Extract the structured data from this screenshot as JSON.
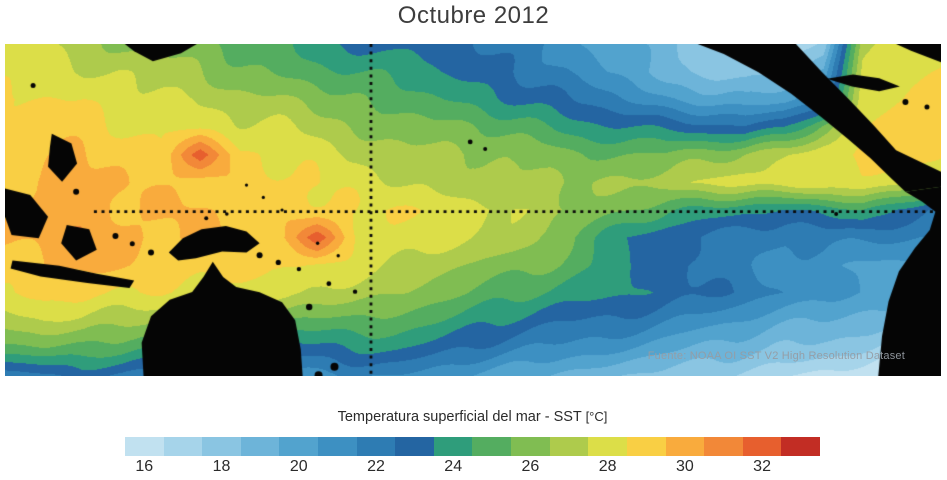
{
  "title": "Octubre 2012",
  "map": {
    "source_note": "Fuente: NOAA OI SST V2 High Resolution Dataset"
  },
  "colorbar": {
    "label": "Temperatura superficial del mar - SST",
    "unit": "[°C]",
    "bin_start": 15.5,
    "bin_size": 1,
    "ticks": [
      16,
      18,
      20,
      22,
      24,
      26,
      28,
      30,
      32
    ],
    "colors": [
      "#c1e1f0",
      "#a6d4ea",
      "#8ac5e2",
      "#6db4d9",
      "#52a3ce",
      "#3d90c2",
      "#2e7cb3",
      "#2465a2",
      "#2f9d7b",
      "#54ad60",
      "#80bd52",
      "#aecb4c",
      "#dcde48",
      "#f9cf44",
      "#f9ab3d",
      "#f28838",
      "#e75f2e",
      "#c22d24"
    ]
  },
  "chart_data": {
    "type": "heatmap",
    "title": "Octubre 2012",
    "variable": "Temperatura superficial del mar - SST (°C)",
    "units": "°C",
    "grid_shape": [
      13,
      25
    ],
    "sst_grid": [
      [
        27.5,
        27.5,
        27,
        26.5,
        26,
        25.5,
        25,
        24.5,
        24,
        23.5,
        23,
        23,
        22.5,
        22,
        21.5,
        20.5,
        19.5,
        18.5,
        18,
        17.5,
        17.5,
        18,
        27,
        28,
        28
      ],
      [
        28,
        28,
        27.5,
        27.5,
        27,
        26.5,
        26,
        25.5,
        25,
        24.5,
        24,
        23.5,
        23,
        22.5,
        22,
        21,
        20,
        19,
        18.5,
        18,
        18.5,
        19.5,
        27.5,
        28.5,
        28.5
      ],
      [
        28.5,
        28.5,
        28.5,
        28,
        28,
        27.5,
        27,
        26.5,
        26,
        25.5,
        25,
        24.5,
        24,
        23.5,
        23,
        22.5,
        21.5,
        20.5,
        20,
        19.5,
        20,
        21.5,
        28,
        28.5,
        29
      ],
      [
        28.5,
        29,
        29,
        28.6,
        28.5,
        28,
        27.6,
        27.5,
        27,
        26.6,
        26,
        25.6,
        25.5,
        25,
        24.6,
        24,
        23.6,
        23,
        22.6,
        22.5,
        23.5,
        26,
        28.5,
        29,
        29
      ],
      [
        29,
        29.2,
        29.4,
        29.2,
        29,
        31.8,
        28.6,
        28.2,
        28,
        27.6,
        27,
        26.6,
        26.5,
        26,
        26,
        25.6,
        25.5,
        25.5,
        26,
        26.5,
        27.5,
        28.5,
        29,
        28.8,
        28.5
      ],
      [
        29.2,
        29.6,
        29.8,
        29.6,
        29.3,
        29.2,
        28.8,
        28.6,
        28.5,
        28.2,
        27.6,
        27.2,
        27,
        26.6,
        26.5,
        26.5,
        26.6,
        27,
        27.5,
        28,
        28.1,
        28.5,
        28.5,
        28,
        27.5
      ],
      [
        29.3,
        29.7,
        30.1,
        29.8,
        29.6,
        29.4,
        29.2,
        28.8,
        28.7,
        28.6,
        28.5,
        28.2,
        28,
        27.6,
        27,
        26.5,
        25.5,
        24.5,
        24,
        23.6,
        23.5,
        24,
        24.5,
        23,
        22.5
      ],
      [
        29.6,
        29.8,
        30.1,
        29.8,
        29.7,
        29.6,
        29.3,
        29,
        31.8,
        28.7,
        28.5,
        28,
        27.5,
        27,
        26,
        25,
        23.6,
        22.6,
        22,
        21.6,
        21.5,
        22,
        22,
        21.5,
        21
      ],
      [
        29.2,
        29.6,
        29.7,
        29.6,
        29.3,
        29.1,
        28.8,
        28.6,
        28.2,
        28,
        27.6,
        27,
        26.6,
        26,
        25.5,
        24.6,
        23.6,
        22.6,
        22,
        21.5,
        21,
        21,
        20.5,
        20.5,
        20
      ],
      [
        28.6,
        29,
        29,
        28.6,
        28.5,
        28,
        28,
        27.6,
        27.5,
        27,
        26.5,
        26,
        25.5,
        25,
        24.5,
        24,
        23.5,
        23,
        22.5,
        22,
        21.5,
        21,
        20.5,
        20,
        19.5
      ],
      [
        27,
        27.5,
        27.5,
        27,
        26.5,
        26,
        25.5,
        25.5,
        25.5,
        25.5,
        25,
        24.5,
        24,
        23.5,
        23,
        22.5,
        22,
        21.5,
        21,
        20.5,
        20,
        19.5,
        19,
        18.5,
        18
      ],
      [
        25,
        25.5,
        25.5,
        25,
        24,
        23,
        22.5,
        23,
        23.5,
        23.5,
        23.5,
        23,
        22.5,
        22,
        21.5,
        21,
        20.5,
        20,
        19.5,
        19,
        18.5,
        18,
        17.5,
        17,
        17
      ],
      [
        22,
        22.5,
        23,
        22.5,
        21.5,
        20.5,
        20,
        20.5,
        21,
        21.5,
        21.5,
        21,
        20.5,
        20,
        19.5,
        19,
        18.5,
        18,
        17.5,
        17,
        16.5,
        16,
        16,
        15.5,
        15.5
      ]
    ],
    "reference_lines": {
      "dateline_x_frac": 0.391,
      "equator_y_frac": 0.505,
      "equator_x_start_frac": 0.095
    },
    "land_polygons": [
      {
        "name": "north-central-america",
        "pts": [
          [
            0.74,
            0
          ],
          [
            0.845,
            0
          ],
          [
            0.873,
            0.085
          ],
          [
            0.901,
            0.165
          ],
          [
            0.928,
            0.245
          ],
          [
            0.952,
            0.32
          ],
          [
            1.0,
            0.385
          ],
          [
            1.0,
            0.43
          ],
          [
            0.962,
            0.445
          ],
          [
            0.945,
            0.4
          ],
          [
            0.925,
            0.345
          ],
          [
            0.9,
            0.285
          ],
          [
            0.872,
            0.22
          ],
          [
            0.84,
            0.15
          ],
          [
            0.805,
            0.085
          ],
          [
            0.768,
            0.03
          ]
        ]
      },
      {
        "name": "south-america",
        "pts": [
          [
            0.962,
            0.445
          ],
          [
            0.98,
            0.475
          ],
          [
            0.994,
            0.505
          ],
          [
            0.988,
            0.56
          ],
          [
            0.972,
            0.615
          ],
          [
            0.955,
            0.685
          ],
          [
            0.944,
            0.775
          ],
          [
            0.937,
            0.88
          ],
          [
            0.933,
            1.0
          ],
          [
            1.0,
            1.0
          ],
          [
            1.0,
            0.43
          ]
        ]
      },
      {
        "name": "florida-corner",
        "pts": [
          [
            0.952,
            0
          ],
          [
            1.0,
            0
          ],
          [
            1.0,
            0.055
          ],
          [
            0.968,
            0.02
          ]
        ]
      },
      {
        "name": "cuba",
        "pts": [
          [
            0.878,
            0.105
          ],
          [
            0.906,
            0.092
          ],
          [
            0.934,
            0.103
          ],
          [
            0.956,
            0.128
          ],
          [
            0.934,
            0.142
          ],
          [
            0.905,
            0.128
          ]
        ]
      },
      {
        "name": "japan",
        "pts": [
          [
            0.128,
            0
          ],
          [
            0.205,
            0
          ],
          [
            0.188,
            0.028
          ],
          [
            0.158,
            0.052
          ],
          [
            0.138,
            0.022
          ]
        ]
      },
      {
        "name": "philippines",
        "pts": [
          [
            0.05,
            0.27
          ],
          [
            0.071,
            0.3
          ],
          [
            0.077,
            0.36
          ],
          [
            0.061,
            0.415
          ],
          [
            0.046,
            0.37
          ],
          [
            0.048,
            0.31
          ]
        ]
      },
      {
        "name": "borneo",
        "pts": [
          [
            0.0,
            0.435
          ],
          [
            0.027,
            0.455
          ],
          [
            0.046,
            0.52
          ],
          [
            0.036,
            0.585
          ],
          [
            0.007,
            0.575
          ],
          [
            0.0,
            0.52
          ]
        ]
      },
      {
        "name": "sulawesi",
        "pts": [
          [
            0.066,
            0.545
          ],
          [
            0.09,
            0.558
          ],
          [
            0.098,
            0.62
          ],
          [
            0.076,
            0.652
          ],
          [
            0.06,
            0.6
          ]
        ]
      },
      {
        "name": "java-chain",
        "pts": [
          [
            0.008,
            0.652
          ],
          [
            0.058,
            0.668
          ],
          [
            0.098,
            0.692
          ],
          [
            0.138,
            0.712
          ],
          [
            0.133,
            0.735
          ],
          [
            0.088,
            0.72
          ],
          [
            0.038,
            0.7
          ],
          [
            0.006,
            0.676
          ]
        ]
      },
      {
        "name": "new-guinea",
        "pts": [
          [
            0.175,
            0.628
          ],
          [
            0.19,
            0.585
          ],
          [
            0.21,
            0.558
          ],
          [
            0.236,
            0.548
          ],
          [
            0.258,
            0.565
          ],
          [
            0.272,
            0.6
          ],
          [
            0.258,
            0.628
          ],
          [
            0.232,
            0.625
          ],
          [
            0.204,
            0.645
          ],
          [
            0.185,
            0.652
          ]
        ]
      },
      {
        "name": "australia",
        "pts": [
          [
            0.148,
            1.0
          ],
          [
            0.146,
            0.9
          ],
          [
            0.156,
            0.82
          ],
          [
            0.176,
            0.77
          ],
          [
            0.2,
            0.747
          ],
          [
            0.212,
            0.702
          ],
          [
            0.222,
            0.656
          ],
          [
            0.233,
            0.702
          ],
          [
            0.247,
            0.732
          ],
          [
            0.272,
            0.748
          ],
          [
            0.296,
            0.778
          ],
          [
            0.31,
            0.832
          ],
          [
            0.316,
            0.92
          ],
          [
            0.318,
            1.0
          ]
        ]
      }
    ],
    "islands": [
      [
        0.03,
        0.125,
        2.5
      ],
      [
        0.076,
        0.445,
        3
      ],
      [
        0.118,
        0.578,
        3
      ],
      [
        0.136,
        0.602,
        2.5
      ],
      [
        0.156,
        0.628,
        3
      ],
      [
        0.215,
        0.525,
        2
      ],
      [
        0.237,
        0.512,
        1.8
      ],
      [
        0.272,
        0.636,
        3
      ],
      [
        0.292,
        0.658,
        2.6
      ],
      [
        0.314,
        0.678,
        2.2
      ],
      [
        0.346,
        0.722,
        2.4
      ],
      [
        0.325,
        0.792,
        3.2
      ],
      [
        0.374,
        0.746,
        2.2
      ],
      [
        0.352,
        0.972,
        4
      ],
      [
        0.335,
        0.998,
        4
      ],
      [
        0.497,
        0.295,
        2.4
      ],
      [
        0.513,
        0.316,
        2
      ],
      [
        0.258,
        0.425,
        1.6
      ],
      [
        0.276,
        0.462,
        1.6
      ],
      [
        0.296,
        0.5,
        1.6
      ],
      [
        0.334,
        0.6,
        1.7
      ],
      [
        0.356,
        0.638,
        1.7
      ],
      [
        0.962,
        0.175,
        3
      ],
      [
        0.985,
        0.19,
        2.5
      ],
      [
        0.888,
        0.512,
        2
      ]
    ]
  }
}
